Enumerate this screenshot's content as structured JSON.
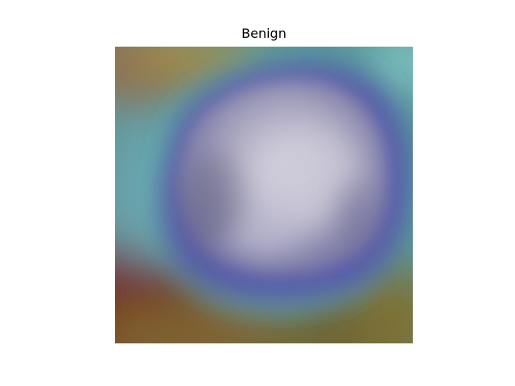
{
  "figure": {
    "title": "Benign"
  },
  "image": {
    "description_kind": "ultrasound-gradcam-overlay",
    "colormap": "jet",
    "colors": {
      "hot": "#7a1a12",
      "warm": "#8a7a2a",
      "mid": "#3fa48c",
      "cool": "#5aa8b8",
      "cold": "#4a4aa0",
      "tissue": "#c8c8d8"
    }
  }
}
